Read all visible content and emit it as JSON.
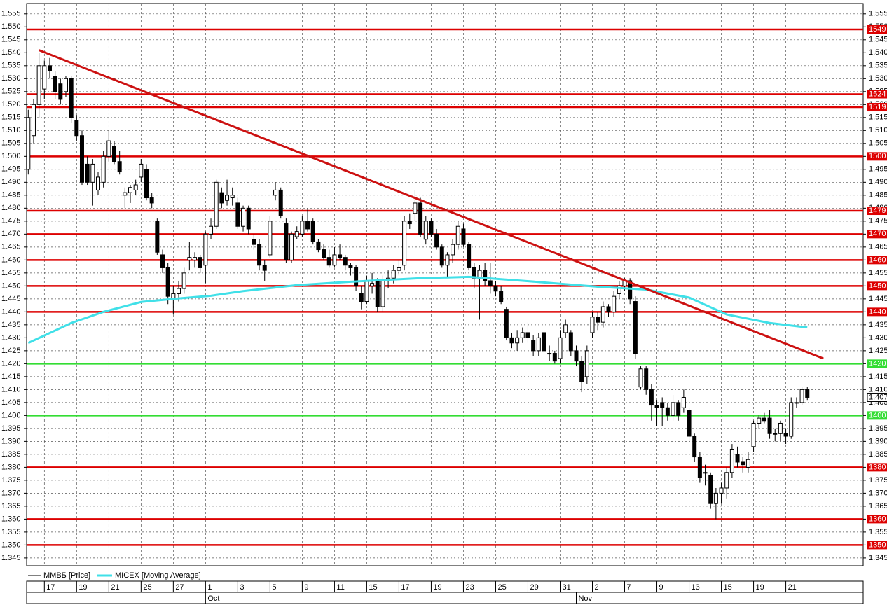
{
  "chart_data": {
    "type": "candlestick",
    "series": [
      {
        "name": "ММВБ [Price]",
        "color": "#000000"
      },
      {
        "name": "MICEX [Moving Average]",
        "color": "#40e0e8"
      }
    ],
    "xlim": [
      -0.3,
      155.4
    ],
    "ylim": [
      1.342,
      1.559
    ],
    "yticks": [
      1.345,
      {
        "value": 1.35,
        "label": "1.350"
      },
      1.355,
      {
        "value": 1.36,
        "label": "1.360"
      },
      1.365,
      {
        "value": 1.37,
        "label": "1.370"
      },
      1.375,
      {
        "value": 1.38,
        "label": "1.380"
      },
      1.385,
      {
        "value": 1.39,
        "label": "1.390"
      },
      1.395,
      {
        "value": 1.4,
        "label": "1.400"
      },
      1.405,
      {
        "value": 1.41,
        "label": "1.410"
      },
      1.415,
      {
        "value": 1.42,
        "label": "1.420"
      },
      1.425,
      {
        "value": 1.43,
        "label": "1.430"
      },
      1.435,
      {
        "value": 1.44,
        "label": "1.440"
      },
      1.445,
      {
        "value": 1.45,
        "label": "1.450"
      },
      1.455,
      {
        "value": 1.46,
        "label": "1.460"
      },
      1.465,
      {
        "value": 1.47,
        "label": "1.470"
      },
      1.475,
      {
        "value": 1.48,
        "label": "1.480"
      },
      1.485,
      {
        "value": 1.49,
        "label": "1.490"
      },
      1.495,
      {
        "value": 1.5,
        "label": "1.500"
      },
      1.505,
      {
        "value": 1.51,
        "label": "1.510"
      },
      1.515,
      {
        "value": 1.52,
        "label": "1.520"
      },
      1.525,
      {
        "value": 1.53,
        "label": "1.530"
      },
      1.535,
      {
        "value": 1.54,
        "label": "1.540"
      },
      1.545,
      {
        "value": 1.55,
        "label": "1.550"
      },
      1.555
    ],
    "xticks": [
      {
        "value": 3,
        "label": "17"
      },
      {
        "value": 9,
        "label": "19"
      },
      {
        "value": 15,
        "label": "21"
      },
      {
        "value": 21,
        "label": "25"
      },
      {
        "value": 27,
        "label": "27"
      },
      {
        "value": 33,
        "label": "1"
      },
      {
        "value": 39,
        "label": "3"
      },
      {
        "value": 45,
        "label": "5"
      },
      {
        "value": 51,
        "label": "9"
      },
      {
        "value": 57,
        "label": "11"
      },
      {
        "value": 63,
        "label": "15"
      },
      {
        "value": 69,
        "label": "17"
      },
      {
        "value": 75,
        "label": "19"
      },
      {
        "value": 81,
        "label": "23"
      },
      {
        "value": 87,
        "label": "25"
      },
      {
        "value": 93,
        "label": "29"
      },
      {
        "value": 99,
        "label": "31"
      },
      {
        "value": 105,
        "label": "2"
      },
      {
        "value": 111,
        "label": "7"
      },
      {
        "value": 117,
        "label": "9"
      },
      {
        "value": 123,
        "label": "13"
      },
      {
        "value": 129,
        "label": "15"
      },
      {
        "value": 135,
        "label": "19"
      },
      {
        "value": 141,
        "label": "21"
      }
    ],
    "months": [
      {
        "value": 33,
        "label": "Oct"
      },
      {
        "value": 102,
        "label": "Nov"
      }
    ],
    "grid": true,
    "ohlc": [
      [
        1.495,
        1.518,
        1.493,
        1.515
      ],
      [
        1.508,
        1.522,
        1.505,
        1.52
      ],
      [
        1.52,
        1.54,
        1.515,
        1.535
      ],
      [
        1.526,
        1.537,
        1.522,
        1.535
      ],
      [
        1.535,
        1.538,
        1.53,
        1.533
      ],
      [
        1.531,
        1.533,
        1.522,
        1.525
      ],
      [
        1.528,
        1.53,
        1.52,
        1.522
      ],
      [
        1.525,
        1.531,
        1.523,
        1.53
      ],
      [
        1.53,
        1.531,
        1.513,
        1.515
      ],
      [
        1.514,
        1.516,
        1.506,
        1.508
      ],
      [
        1.508,
        1.51,
        1.489,
        1.49
      ],
      [
        1.497,
        1.5,
        1.489,
        1.49
      ],
      [
        1.49,
        1.499,
        1.481,
        1.497
      ],
      [
        1.487,
        1.494,
        1.485,
        1.492
      ],
      [
        1.49,
        1.502,
        1.488,
        1.5
      ],
      [
        1.5,
        1.51,
        1.498,
        1.506
      ],
      [
        1.504,
        1.506,
        1.497,
        1.498
      ],
      [
        1.498,
        1.502,
        1.493,
        1.494
      ],
      [
        1.485,
        1.488,
        1.48,
        1.486
      ],
      [
        1.486,
        1.489,
        1.482,
        1.488
      ],
      [
        1.487,
        1.491,
        1.485,
        1.489
      ],
      [
        1.492,
        1.499,
        1.49,
        1.497
      ],
      [
        1.495,
        1.497,
        1.483,
        1.484
      ],
      [
        1.484,
        1.486,
        1.48,
        1.482
      ],
      [
        1.475,
        1.476,
        1.462,
        1.463
      ],
      [
        1.462,
        1.464,
        1.455,
        1.457
      ],
      [
        1.457,
        1.459,
        1.443,
        1.446
      ],
      [
        1.445,
        1.45,
        1.439,
        1.447
      ],
      [
        1.447,
        1.452,
        1.444,
        1.449
      ],
      [
        1.449,
        1.457,
        1.447,
        1.455
      ],
      [
        1.46,
        1.467,
        1.456,
        1.461
      ],
      [
        1.46,
        1.463,
        1.457,
        1.461
      ],
      [
        1.461,
        1.462,
        1.455,
        1.457
      ],
      [
        1.458,
        1.471,
        1.451,
        1.47
      ],
      [
        1.47,
        1.476,
        1.468,
        1.473
      ],
      [
        1.473,
        1.491,
        1.472,
        1.49
      ],
      [
        1.486,
        1.488,
        1.48,
        1.482
      ],
      [
        1.483,
        1.491,
        1.481,
        1.485
      ],
      [
        1.484,
        1.488,
        1.481,
        1.485
      ],
      [
        1.482,
        1.484,
        1.472,
        1.473
      ],
      [
        1.473,
        1.481,
        1.471,
        1.48
      ],
      [
        1.48,
        1.481,
        1.47,
        1.472
      ],
      [
        1.468,
        1.47,
        1.464,
        1.466
      ],
      [
        1.466,
        1.468,
        1.456,
        1.458
      ],
      [
        1.458,
        1.46,
        1.452,
        1.456
      ],
      [
        1.462,
        1.477,
        1.461,
        1.475
      ],
      [
        1.485,
        1.49,
        1.483,
        1.487
      ],
      [
        1.487,
        1.488,
        1.476,
        1.477
      ],
      [
        1.474,
        1.476,
        1.459,
        1.46
      ],
      [
        1.46,
        1.471,
        1.459,
        1.47
      ],
      [
        1.469,
        1.473,
        1.468,
        1.471
      ],
      [
        1.47,
        1.477,
        1.469,
        1.475
      ],
      [
        1.475,
        1.48,
        1.471,
        1.472
      ],
      [
        1.475,
        1.476,
        1.466,
        1.467
      ],
      [
        1.467,
        1.468,
        1.463,
        1.464
      ],
      [
        1.464,
        1.466,
        1.46,
        1.461
      ],
      [
        1.461,
        1.464,
        1.457,
        1.458
      ],
      [
        1.458,
        1.465,
        1.457,
        1.462
      ],
      [
        1.462,
        1.466,
        1.46,
        1.461
      ],
      [
        1.461,
        1.462,
        1.456,
        1.458
      ],
      [
        1.458,
        1.459,
        1.454,
        1.457
      ],
      [
        1.457,
        1.458,
        1.448,
        1.45
      ],
      [
        1.447,
        1.45,
        1.441,
        1.444
      ],
      [
        1.444,
        1.454,
        1.443,
        1.452
      ],
      [
        1.45,
        1.455,
        1.447,
        1.451
      ],
      [
        1.452,
        1.453,
        1.44,
        1.442
      ],
      [
        1.442,
        1.454,
        1.44,
        1.452
      ],
      [
        1.452,
        1.456,
        1.449,
        1.453
      ],
      [
        1.453,
        1.458,
        1.451,
        1.456
      ],
      [
        1.456,
        1.46,
        1.454,
        1.457
      ],
      [
        1.458,
        1.477,
        1.456,
        1.475
      ],
      [
        1.475,
        1.478,
        1.472,
        1.474
      ],
      [
        1.478,
        1.487,
        1.475,
        1.482
      ],
      [
        1.482,
        1.484,
        1.469,
        1.47
      ],
      [
        1.468,
        1.477,
        1.466,
        1.475
      ],
      [
        1.475,
        1.476,
        1.469,
        1.47
      ],
      [
        1.47,
        1.472,
        1.464,
        1.465
      ],
      [
        1.465,
        1.466,
        1.457,
        1.458
      ],
      [
        1.458,
        1.463,
        1.453,
        1.462
      ],
      [
        1.462,
        1.468,
        1.459,
        1.466
      ],
      [
        1.466,
        1.475,
        1.464,
        1.473
      ],
      [
        1.472,
        1.474,
        1.465,
        1.466
      ],
      [
        1.466,
        1.467,
        1.456,
        1.457
      ],
      [
        1.457,
        1.459,
        1.449,
        1.453
      ],
      [
        1.453,
        1.458,
        1.437,
        1.456
      ],
      [
        1.456,
        1.459,
        1.45,
        1.452
      ],
      [
        1.452,
        1.459,
        1.447,
        1.45
      ],
      [
        1.45,
        1.452,
        1.446,
        1.448
      ],
      [
        1.448,
        1.45,
        1.443,
        1.444
      ],
      [
        1.441,
        1.442,
        1.429,
        1.43
      ],
      [
        1.43,
        1.432,
        1.426,
        1.428
      ],
      [
        1.428,
        1.433,
        1.425,
        1.43
      ],
      [
        1.43,
        1.434,
        1.428,
        1.432
      ],
      [
        1.432,
        1.436,
        1.428,
        1.43
      ],
      [
        1.429,
        1.431,
        1.423,
        1.425
      ],
      [
        1.425,
        1.432,
        1.423,
        1.43
      ],
      [
        1.432,
        1.436,
        1.423,
        1.425
      ],
      [
        1.424,
        1.427,
        1.421,
        1.424
      ],
      [
        1.424,
        1.425,
        1.42,
        1.421
      ],
      [
        1.422,
        1.433,
        1.42,
        1.43
      ],
      [
        1.432,
        1.437,
        1.43,
        1.435
      ],
      [
        1.432,
        1.433,
        1.423,
        1.425
      ],
      [
        1.425,
        1.427,
        1.419,
        1.421
      ],
      [
        1.421,
        1.423,
        1.409,
        1.413
      ],
      [
        1.415,
        1.427,
        1.412,
        1.425
      ],
      [
        1.432,
        1.44,
        1.43,
        1.438
      ],
      [
        1.438,
        1.44,
        1.433,
        1.436
      ],
      [
        1.436,
        1.444,
        1.434,
        1.442
      ],
      [
        1.442,
        1.443,
        1.438,
        1.44
      ],
      [
        1.44,
        1.448,
        1.438,
        1.446
      ],
      [
        1.447,
        1.452,
        1.445,
        1.45
      ],
      [
        1.45,
        1.453,
        1.448,
        1.452
      ],
      [
        1.452,
        1.453,
        1.443,
        1.445
      ],
      [
        1.444,
        1.446,
        1.422,
        1.424
      ],
      [
        1.411,
        1.419,
        1.41,
        1.418
      ],
      [
        1.418,
        1.419,
        1.408,
        1.41
      ],
      [
        1.41,
        1.412,
        1.398,
        1.404
      ],
      [
        1.404,
        1.406,
        1.396,
        1.403
      ],
      [
        1.405,
        1.407,
        1.396,
        1.403
      ],
      [
        1.403,
        1.405,
        1.398,
        1.4
      ],
      [
        1.4,
        1.408,
        1.398,
        1.405
      ],
      [
        1.405,
        1.406,
        1.398,
        1.4
      ],
      [
        1.403,
        1.41,
        1.401,
        1.407
      ],
      [
        1.402,
        1.403,
        1.39,
        1.392
      ],
      [
        1.392,
        1.393,
        1.382,
        1.384
      ],
      [
        1.384,
        1.386,
        1.374,
        1.376
      ],
      [
        1.378,
        1.381,
        1.373,
        1.378
      ],
      [
        1.377,
        1.378,
        1.364,
        1.366
      ],
      [
        1.366,
        1.372,
        1.36,
        1.37
      ],
      [
        1.37,
        1.374,
        1.366,
        1.372
      ],
      [
        1.372,
        1.38,
        1.368,
        1.378
      ],
      [
        1.378,
        1.389,
        1.376,
        1.387
      ],
      [
        1.385,
        1.388,
        1.38,
        1.382
      ],
      [
        1.382,
        1.384,
        1.378,
        1.381
      ],
      [
        1.38,
        1.386,
        1.378,
        1.383
      ],
      [
        1.388,
        1.398,
        1.386,
        1.397
      ],
      [
        1.397,
        1.4,
        1.395,
        1.399
      ],
      [
        1.399,
        1.401,
        1.397,
        1.398
      ],
      [
        1.399,
        1.402,
        1.391,
        1.393
      ],
      [
        1.393,
        1.395,
        1.39,
        1.393
      ],
      [
        1.393,
        1.398,
        1.39,
        1.397
      ],
      [
        1.393,
        1.395,
        1.389,
        1.392
      ],
      [
        1.392,
        1.407,
        1.391,
        1.405
      ],
      [
        1.405,
        1.407,
        1.403,
        1.405
      ],
      [
        1.405,
        1.411,
        1.404,
        1.41
      ],
      [
        1.41,
        1.411,
        1.406,
        1.407
      ]
    ],
    "moving_average": {
      "x": [
        0,
        8,
        14,
        21,
        27,
        34,
        40,
        50,
        60,
        73,
        82,
        92,
        106,
        115,
        123,
        130,
        138,
        145
      ],
      "values": [
        1.428,
        1.4357,
        1.44,
        1.4438,
        1.445,
        1.4462,
        1.448,
        1.4503,
        1.4516,
        1.453,
        1.4535,
        1.452,
        1.4497,
        1.4486,
        1.4455,
        1.439,
        1.4357,
        1.434
      ]
    },
    "trendline": {
      "x": [
        2,
        148
      ],
      "values": [
        1.541,
        1.422
      ],
      "color": "#cc1111"
    },
    "levels": [
      {
        "value": 1.549,
        "label": "1549",
        "color": "#dd0000"
      },
      {
        "value": 1.524,
        "label": "1524",
        "color": "#dd0000"
      },
      {
        "value": 1.519,
        "label": "1519",
        "color": "#dd0000"
      },
      {
        "value": 1.5,
        "label": "1500",
        "color": "#dd0000"
      },
      {
        "value": 1.479,
        "label": "1479",
        "color": "#dd0000"
      },
      {
        "value": 1.47,
        "label": "1470",
        "color": "#dd0000"
      },
      {
        "value": 1.46,
        "label": "1460",
        "color": "#dd0000"
      },
      {
        "value": 1.45,
        "label": "1450",
        "color": "#dd0000"
      },
      {
        "value": 1.44,
        "label": "1440",
        "color": "#dd0000"
      },
      {
        "value": 1.42,
        "label": "1420",
        "color": "#33dd33"
      },
      {
        "value": 1.4,
        "label": "1400",
        "color": "#33dd33"
      },
      {
        "value": 1.38,
        "label": "1380",
        "color": "#dd0000"
      },
      {
        "value": 1.36,
        "label": "1360",
        "color": "#dd0000"
      },
      {
        "value": 1.35,
        "label": "1350",
        "color": "#dd0000"
      }
    ],
    "last_price": 1.407
  }
}
